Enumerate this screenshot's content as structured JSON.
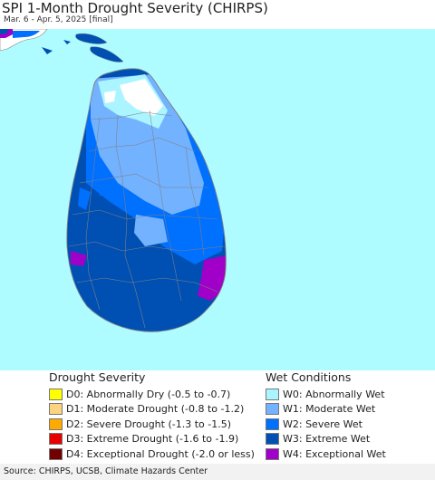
{
  "header": {
    "title": "SPI 1-Month Drought Severity (CHIRPS)",
    "subtitle": "Mar. 6 - Apr. 5, 2025 [final]"
  },
  "map": {
    "sea_color": "#aefcff",
    "neighbor_land_color": "#ffffff",
    "boundary_color": "#808080"
  },
  "legend": {
    "drought": {
      "heading": "Drought Severity",
      "items": [
        {
          "label": "D0: Abnormally Dry (-0.5 to -0.7)",
          "color": "#ffff00"
        },
        {
          "label": "D1: Moderate Drought (-0.8 to -1.2)",
          "color": "#fcd37f"
        },
        {
          "label": "D2: Severe Drought (-1.3 to -1.5)",
          "color": "#ffaa00"
        },
        {
          "label": "D3: Extreme Drought (-1.6 to -1.9)",
          "color": "#e60000"
        },
        {
          "label": "D4: Exceptional Drought (-2.0 or less)",
          "color": "#730000"
        }
      ]
    },
    "wet": {
      "heading": "Wet Conditions",
      "items": [
        {
          "label": "W0: Abnormally Wet",
          "color": "#aaf5ff"
        },
        {
          "label": "W1: Moderate Wet",
          "color": "#73b2ff"
        },
        {
          "label": "W2: Severe Wet",
          "color": "#0070ff"
        },
        {
          "label": "W3: Extreme Wet",
          "color": "#0050b4"
        },
        {
          "label": "W4: Exceptional Wet",
          "color": "#a000c8"
        }
      ]
    }
  },
  "footer": {
    "source": "Source: CHIRPS, UCSB, Climate Hazards Center"
  }
}
